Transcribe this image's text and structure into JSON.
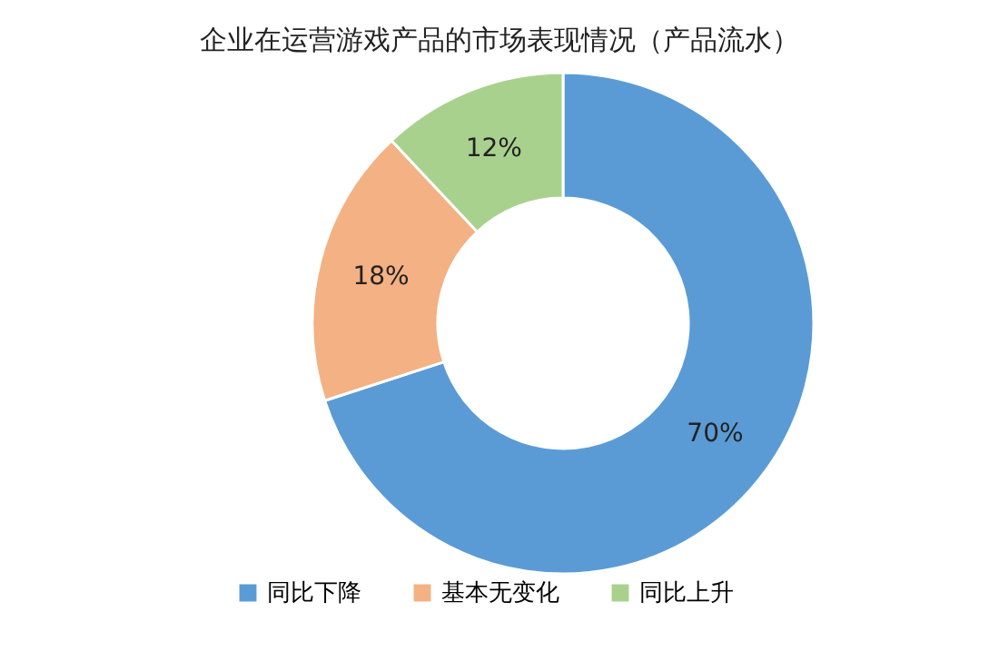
{
  "chart_data": {
    "type": "donut",
    "title": "企业在运营游戏产品的市场表现情况（产品流水）",
    "categories": [
      "同比下降",
      "基本无变化",
      "同比上升"
    ],
    "values": [
      70,
      18,
      12
    ],
    "colors": [
      "#5b9bd5",
      "#f4b183",
      "#a9d18e"
    ],
    "value_labels": [
      "70%",
      "18%",
      "12%"
    ],
    "legend": "bottom"
  }
}
